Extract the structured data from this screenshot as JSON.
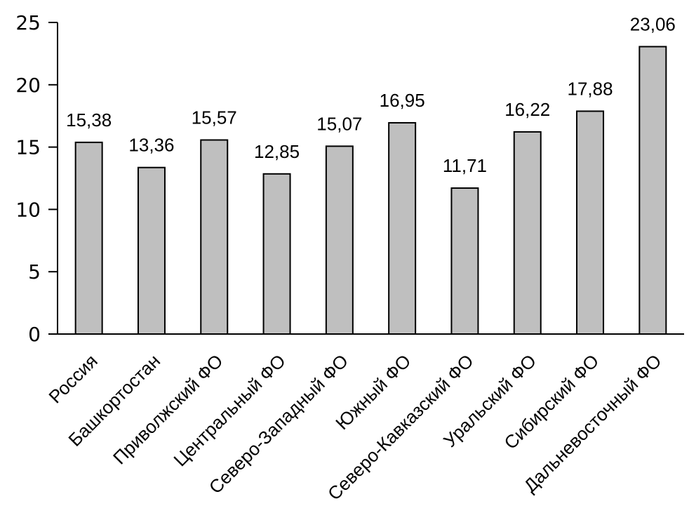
{
  "chart_data": {
    "type": "bar",
    "title": "",
    "xlabel": "",
    "ylabel": "",
    "categories": [
      "Россия",
      "Башкортостан",
      "Приволжский ФО",
      "Центральный ФО",
      "Северо-Западный ФО",
      "Южный ФО",
      "Северо-Кавказский ФО",
      "Уральский ФО",
      "Сибирский ФО",
      "Дальневосточный ФО"
    ],
    "values": [
      15.38,
      13.36,
      15.57,
      12.85,
      15.07,
      16.95,
      11.71,
      16.22,
      17.88,
      23.06
    ],
    "value_labels": [
      "15,38",
      "13,36",
      "15,57",
      "12,85",
      "15,07",
      "16,95",
      "11,71",
      "16,22",
      "17,88",
      "23,06"
    ],
    "ylim": [
      0,
      25
    ],
    "yticks": [
      0,
      5,
      10,
      15,
      20,
      25
    ],
    "ytick_labels": [
      "0",
      "5",
      "10",
      "15",
      "20",
      "25"
    ],
    "grid": false,
    "legend": false,
    "category_label_rotation_deg": 45,
    "decimal_separator": ",",
    "colors": {
      "bar_fill": "#bfbfbf",
      "bar_stroke": "#000000",
      "axis": "#000000",
      "text": "#000000",
      "background": "#ffffff"
    }
  }
}
